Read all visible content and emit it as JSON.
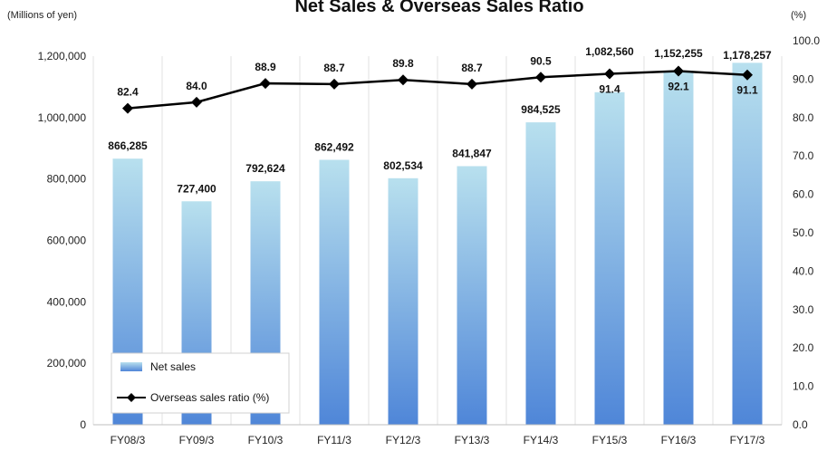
{
  "chart_data": {
    "type": "bar",
    "title": "Net Sales & Overseas Sales Ratio",
    "left_unit": "(Millions of yen)",
    "right_unit": "(%)",
    "categories": [
      "FY08/3",
      "FY09/3",
      "FY10/3",
      "FY11/3",
      "FY12/3",
      "FY13/3",
      "FY14/3",
      "FY15/3",
      "FY16/3",
      "FY17/3"
    ],
    "series": [
      {
        "name": "Net sales",
        "type": "bar",
        "axis": "left",
        "values": [
          866285,
          727400,
          792624,
          862492,
          802534,
          841847,
          984525,
          1082560,
          1152255,
          1178257
        ],
        "labels": [
          "866,285",
          "727,400",
          "792,624",
          "862,492",
          "802,534",
          "841,847",
          "984,525",
          "1,082,560",
          "1,152,255",
          "1,178,257"
        ],
        "color": "#7aa6e0"
      },
      {
        "name": "Overseas sales ratio (%)",
        "type": "line",
        "axis": "right",
        "values": [
          82.4,
          84.0,
          88.9,
          88.7,
          89.8,
          88.7,
          90.5,
          91.4,
          92.1,
          91.1
        ],
        "labels": [
          "82.4",
          "84.0",
          "88.9",
          "88.7",
          "89.8",
          "88.7",
          "90.5",
          "91.4",
          "92.1",
          "91.1"
        ],
        "color": "#000000"
      }
    ],
    "ylim": [
      0,
      1200000
    ],
    "y_ticks": [
      "0",
      "200,000",
      "400,000",
      "600,000",
      "800,000",
      "1,000,000",
      "1,200,000"
    ],
    "y2lim": [
      0,
      100
    ],
    "y2_ticks": [
      "0.0",
      "10.0",
      "20.0",
      "30.0",
      "40.0",
      "50.0",
      "60.0",
      "70.0",
      "80.0",
      "90.0",
      "100.0"
    ],
    "grid": "vertical",
    "legend": "bottom-left",
    "bar_colors": {
      "top": "#b8e0ee",
      "bottom": "#4f86d8"
    }
  }
}
